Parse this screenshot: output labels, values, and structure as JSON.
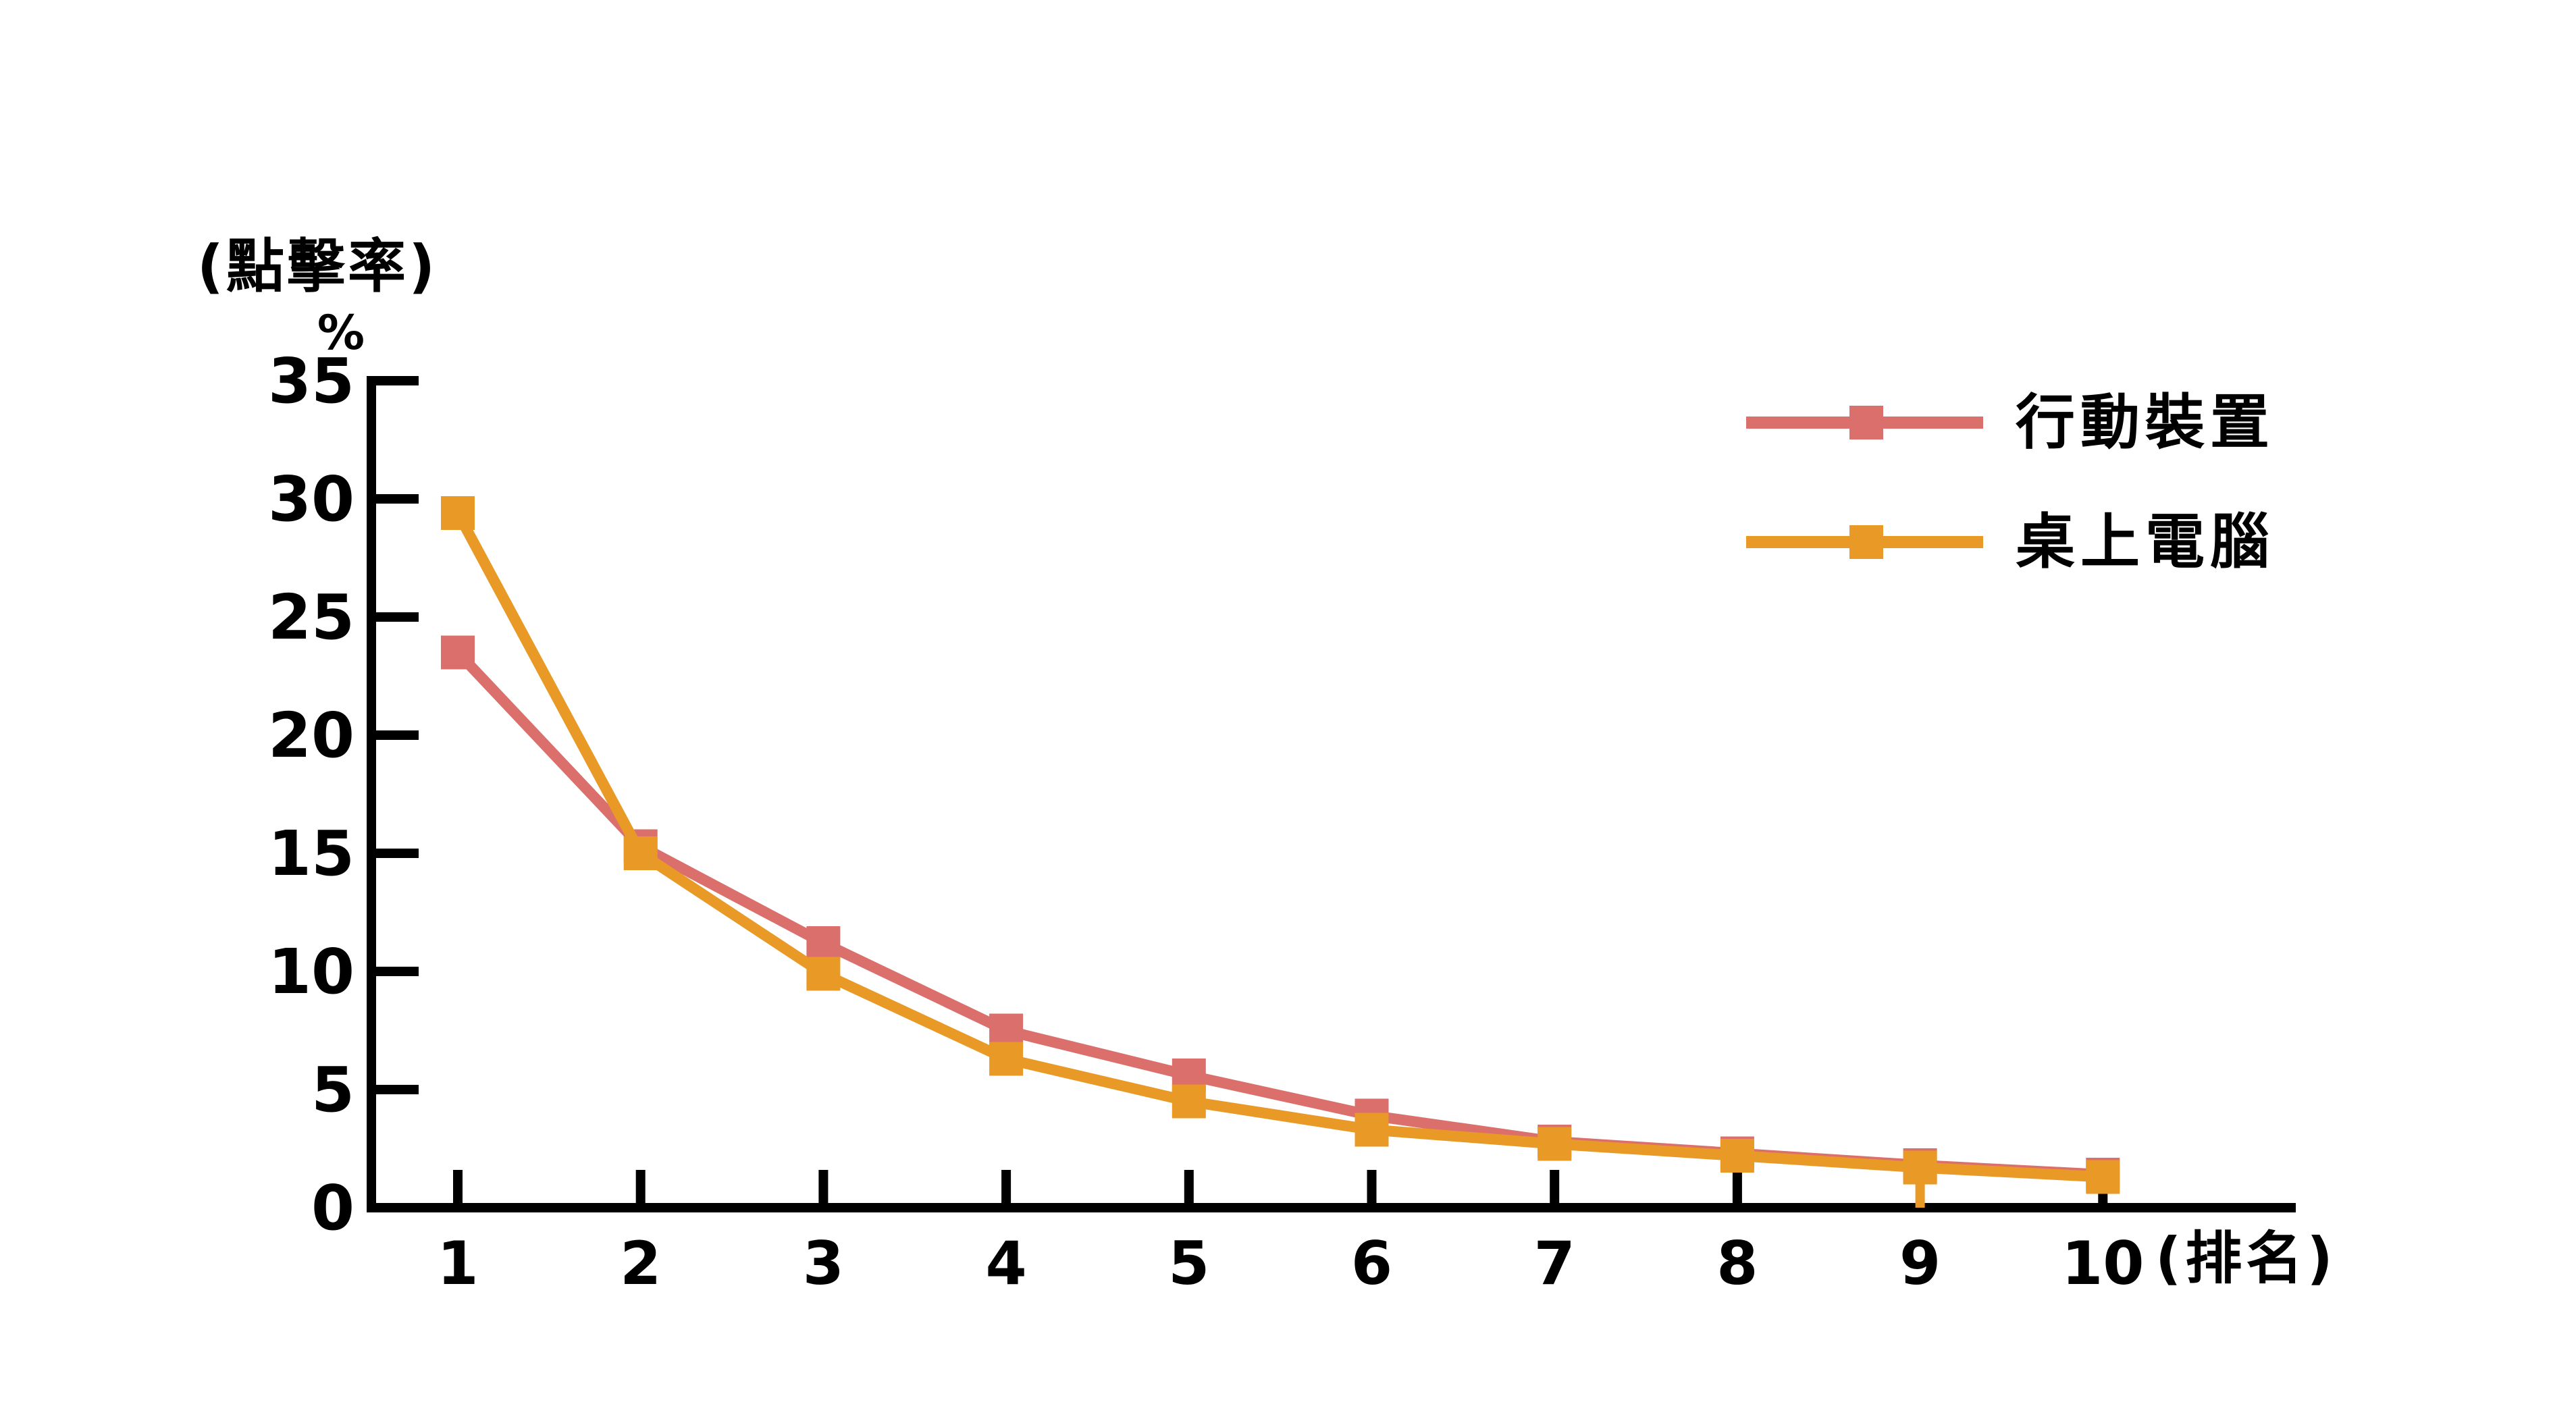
{
  "chart_data": {
    "type": "line",
    "title": "",
    "y_axis_label": "(點擊率)",
    "y_axis_unit": "%",
    "x_axis_label": "(排名)",
    "categories": [
      1,
      2,
      3,
      4,
      5,
      6,
      7,
      8,
      9,
      10
    ],
    "y_ticks": [
      0,
      5,
      10,
      15,
      20,
      25,
      30,
      35
    ],
    "ylim": [
      0,
      35
    ],
    "grid": false,
    "legend_position": "top-right",
    "marker": "square",
    "series": [
      {
        "name": "行動裝置",
        "color": "#DB6F6C",
        "values": [
          23.5,
          15.3,
          11.2,
          7.5,
          5.6,
          3.9,
          2.8,
          2.3,
          1.8,
          1.4
        ]
      },
      {
        "name": "桌上電腦",
        "color": "#E99A26",
        "values": [
          29.4,
          15.0,
          9.9,
          6.3,
          4.5,
          3.3,
          2.7,
          2.2,
          1.7,
          1.3
        ]
      }
    ],
    "annotations": "rank-9 x-tick rendered in desktop orange color under marker"
  }
}
